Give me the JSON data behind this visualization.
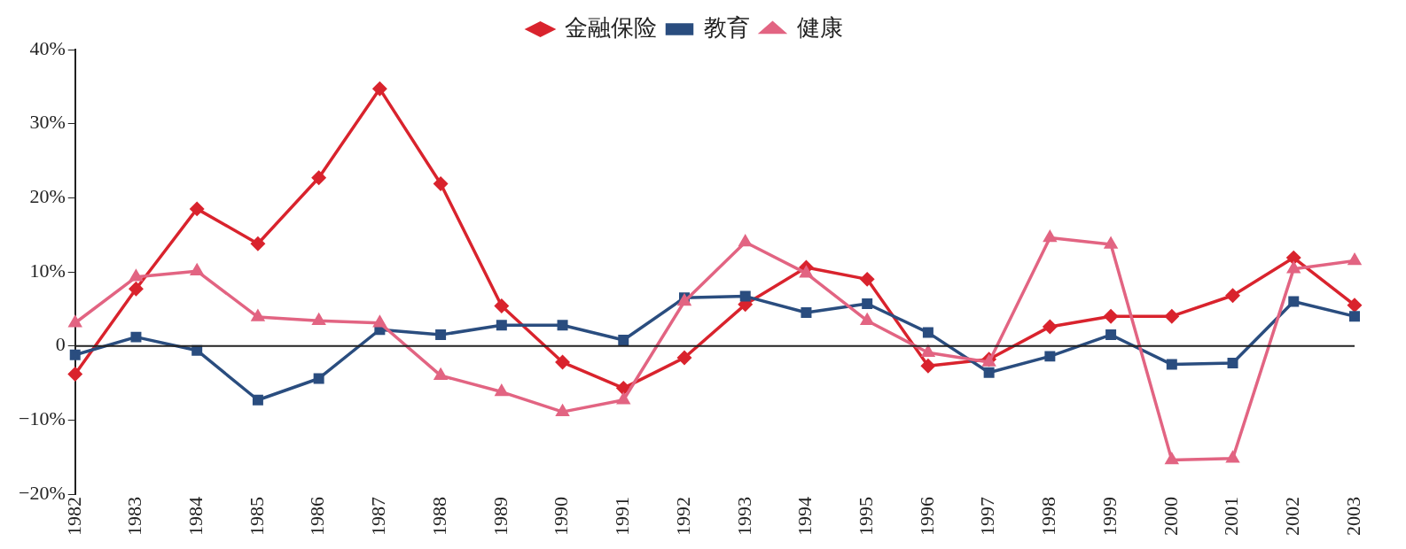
{
  "chart_data": {
    "type": "line",
    "categories": [
      "1982",
      "1983",
      "1984",
      "1985",
      "1986",
      "1987",
      "1988",
      "1989",
      "1990",
      "1991",
      "1992",
      "1993",
      "1994",
      "1995",
      "1996",
      "1997",
      "1998",
      "1999",
      "2000",
      "2001",
      "2002",
      "2003"
    ],
    "series": [
      {
        "name": "金融保险",
        "color": "#d9232d",
        "marker": "diamond",
        "values": [
          -3.8,
          7.7,
          18.5,
          13.8,
          22.7,
          34.7,
          21.9,
          5.4,
          -2.2,
          -5.7,
          -1.6,
          5.6,
          10.6,
          9.0,
          -2.7,
          -1.8,
          2.6,
          4.0,
          4.0,
          6.8,
          11.9,
          5.5
        ]
      },
      {
        "name": "教育",
        "color": "#2a4d7f",
        "marker": "square",
        "values": [
          -1.2,
          1.2,
          -0.6,
          -7.3,
          -4.4,
          2.2,
          1.5,
          2.8,
          2.8,
          0.8,
          6.5,
          6.7,
          4.5,
          5.7,
          1.8,
          -3.6,
          -1.4,
          1.5,
          -2.5,
          -2.3,
          6.0,
          4.0
        ]
      },
      {
        "name": "健康",
        "color": "#e26482",
        "marker": "triangle",
        "values": [
          3.1,
          9.3,
          10.1,
          3.9,
          3.4,
          3.1,
          -4.0,
          -6.2,
          -8.9,
          -7.3,
          6.0,
          14.0,
          9.8,
          3.4,
          -0.9,
          -2.2,
          14.6,
          13.7,
          -15.4,
          -15.2,
          10.4,
          11.5
        ]
      }
    ],
    "ylim": [
      -20,
      40
    ],
    "yticks": [
      {
        "value": -20,
        "label": "−20%"
      },
      {
        "value": -10,
        "label": "−10%"
      },
      {
        "value": 0,
        "label": "0"
      },
      {
        "value": 10,
        "label": "10%"
      },
      {
        "value": 20,
        "label": "20%"
      },
      {
        "value": 30,
        "label": "30%"
      },
      {
        "value": 40,
        "label": "40%"
      }
    ],
    "ref_lines": [
      {
        "axis": "y",
        "value": 0,
        "color": "#222222"
      }
    ],
    "grid": false,
    "legend": "top",
    "line_style": "solid"
  }
}
